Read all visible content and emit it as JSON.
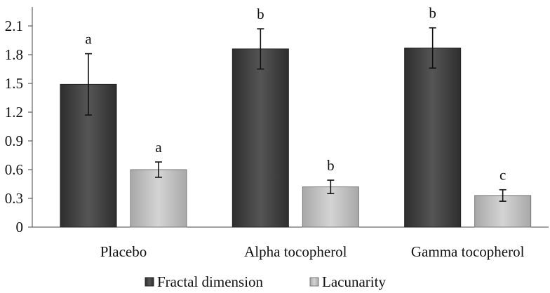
{
  "chart_data": {
    "type": "bar",
    "categories": [
      "Placebo",
      "Alpha tocopherol",
      "Gamma tocopherol"
    ],
    "ylim": [
      0,
      2.1
    ],
    "yticks": [
      "0",
      "0.3",
      "0.6",
      "0.9",
      "1.2",
      "1.5",
      "1.8",
      "2.1"
    ],
    "grid": false,
    "legend_position": "bottom",
    "series": [
      {
        "name": "Fractal dimension",
        "color": "#4a4a4a",
        "values": [
          1.49,
          1.86,
          1.87
        ],
        "errors": [
          0.32,
          0.21,
          0.21
        ],
        "significance": [
          "a",
          "b",
          "b"
        ]
      },
      {
        "name": "Lacunarity",
        "color": "#c2c2c2",
        "values": [
          0.6,
          0.42,
          0.33
        ],
        "errors": [
          0.08,
          0.07,
          0.06
        ],
        "significance": [
          "a",
          "b",
          "c"
        ]
      }
    ]
  }
}
